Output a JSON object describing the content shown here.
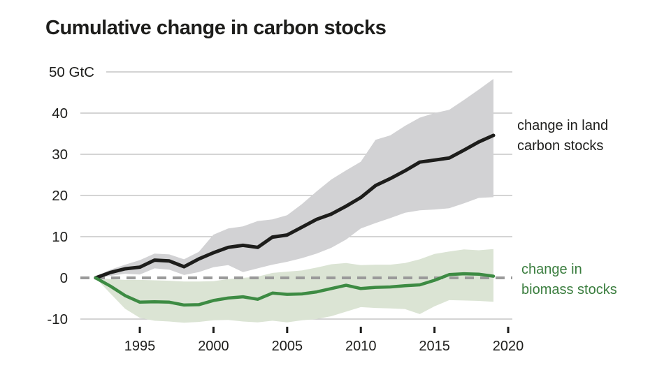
{
  "title": "Cumulative change in carbon stocks",
  "legend": {
    "land": {
      "line1": "change in land",
      "line2": "carbon stocks"
    },
    "biomass": {
      "line1": "change in",
      "line2": "biomass stocks"
    }
  },
  "colors": {
    "land_line": "#1d1d1b",
    "land_band": "#d2d2d4",
    "biomass_line": "#3d8b43",
    "biomass_band": "#dbe4d4",
    "biomass_text": "#3a7d3e",
    "zero_dash": "#9a9a9a",
    "gridline": "#c6c6c6",
    "text": "#1d1d1b"
  },
  "chart_data": {
    "type": "line",
    "title": "Cumulative change in carbon stocks",
    "ylabel": "GtC",
    "xlabel": "",
    "grid": true,
    "zero_line": "dashed",
    "legend_position": "right",
    "ylim": [
      -13,
      52
    ],
    "xlim": [
      1991,
      2020.3
    ],
    "x": [
      1992,
      1993,
      1994,
      1995,
      1996,
      1997,
      1998,
      1999,
      2000,
      2001,
      2002,
      2003,
      2004,
      2005,
      2006,
      2007,
      2008,
      2009,
      2010,
      2011,
      2012,
      2013,
      2014,
      2015,
      2016,
      2017,
      2018,
      2019
    ],
    "series": [
      {
        "name": "change in land carbon stocks",
        "values": [
          0,
          1.3,
          2.2,
          2.6,
          4.3,
          4.1,
          2.7,
          4.6,
          6.1,
          7.4,
          7.9,
          7.4,
          9.9,
          10.4,
          12.3,
          14.2,
          15.5,
          17.4,
          19.5,
          22.4,
          24.1,
          26.0,
          28.1,
          28.6,
          29.1,
          31.0,
          33.0,
          34.6
        ],
        "band_upper": [
          0.3,
          2.0,
          3.2,
          4.3,
          5.9,
          5.7,
          4.5,
          6.3,
          10.5,
          12.0,
          12.5,
          13.8,
          14.2,
          15.2,
          17.9,
          21.0,
          23.9,
          26.1,
          28.2,
          33.5,
          34.6,
          36.9,
          38.9,
          40.0,
          40.8,
          43.2,
          45.7,
          48.3
        ],
        "band_lower": [
          -0.2,
          0.5,
          1.0,
          0.8,
          2.3,
          2.0,
          0.7,
          1.4,
          2.6,
          3.1,
          1.4,
          2.3,
          3.2,
          3.9,
          4.8,
          5.9,
          7.3,
          9.3,
          12.0,
          13.3,
          14.5,
          15.8,
          16.4,
          16.6,
          16.9,
          18.1,
          19.4,
          19.6
        ]
      },
      {
        "name": "change in biomass stocks",
        "values": [
          0,
          -2.0,
          -4.3,
          -5.9,
          -5.8,
          -5.9,
          -6.6,
          -6.5,
          -5.5,
          -4.9,
          -4.6,
          -5.2,
          -3.7,
          -4.0,
          -3.9,
          -3.4,
          -2.6,
          -1.8,
          -2.6,
          -2.3,
          -2.2,
          -1.9,
          -1.7,
          -0.6,
          0.8,
          1.0,
          0.9,
          0.4
        ],
        "band_upper": [
          0,
          -0.3,
          -0.5,
          -0.5,
          -0.6,
          -0.7,
          -0.9,
          -0.9,
          -0.8,
          -0.3,
          0.0,
          0.3,
          1.2,
          1.5,
          1.8,
          2.5,
          3.3,
          3.6,
          3.1,
          3.2,
          3.2,
          3.6,
          4.5,
          5.8,
          6.4,
          6.9,
          6.7,
          7.0
        ],
        "band_lower": [
          0,
          -3.8,
          -7.5,
          -9.7,
          -10.4,
          -10.6,
          -10.9,
          -10.7,
          -10.3,
          -10.2,
          -10.6,
          -10.8,
          -10.4,
          -10.8,
          -10.3,
          -10.0,
          -9.3,
          -8.2,
          -7.1,
          -7.3,
          -7.4,
          -7.6,
          -8.8,
          -6.9,
          -5.4,
          -5.5,
          -5.6,
          -5.8
        ]
      }
    ],
    "y_ticks": {
      "labels": [
        "50 GtC",
        "40",
        "30",
        "20",
        "10",
        "0",
        "-10"
      ],
      "values": [
        50,
        40,
        30,
        20,
        10,
        0,
        -10
      ]
    },
    "x_ticks": {
      "labels": [
        "1995",
        "2000",
        "2005",
        "2010",
        "2015",
        "2020"
      ],
      "values": [
        1995,
        2000,
        2005,
        2010,
        2015,
        2020
      ]
    }
  }
}
